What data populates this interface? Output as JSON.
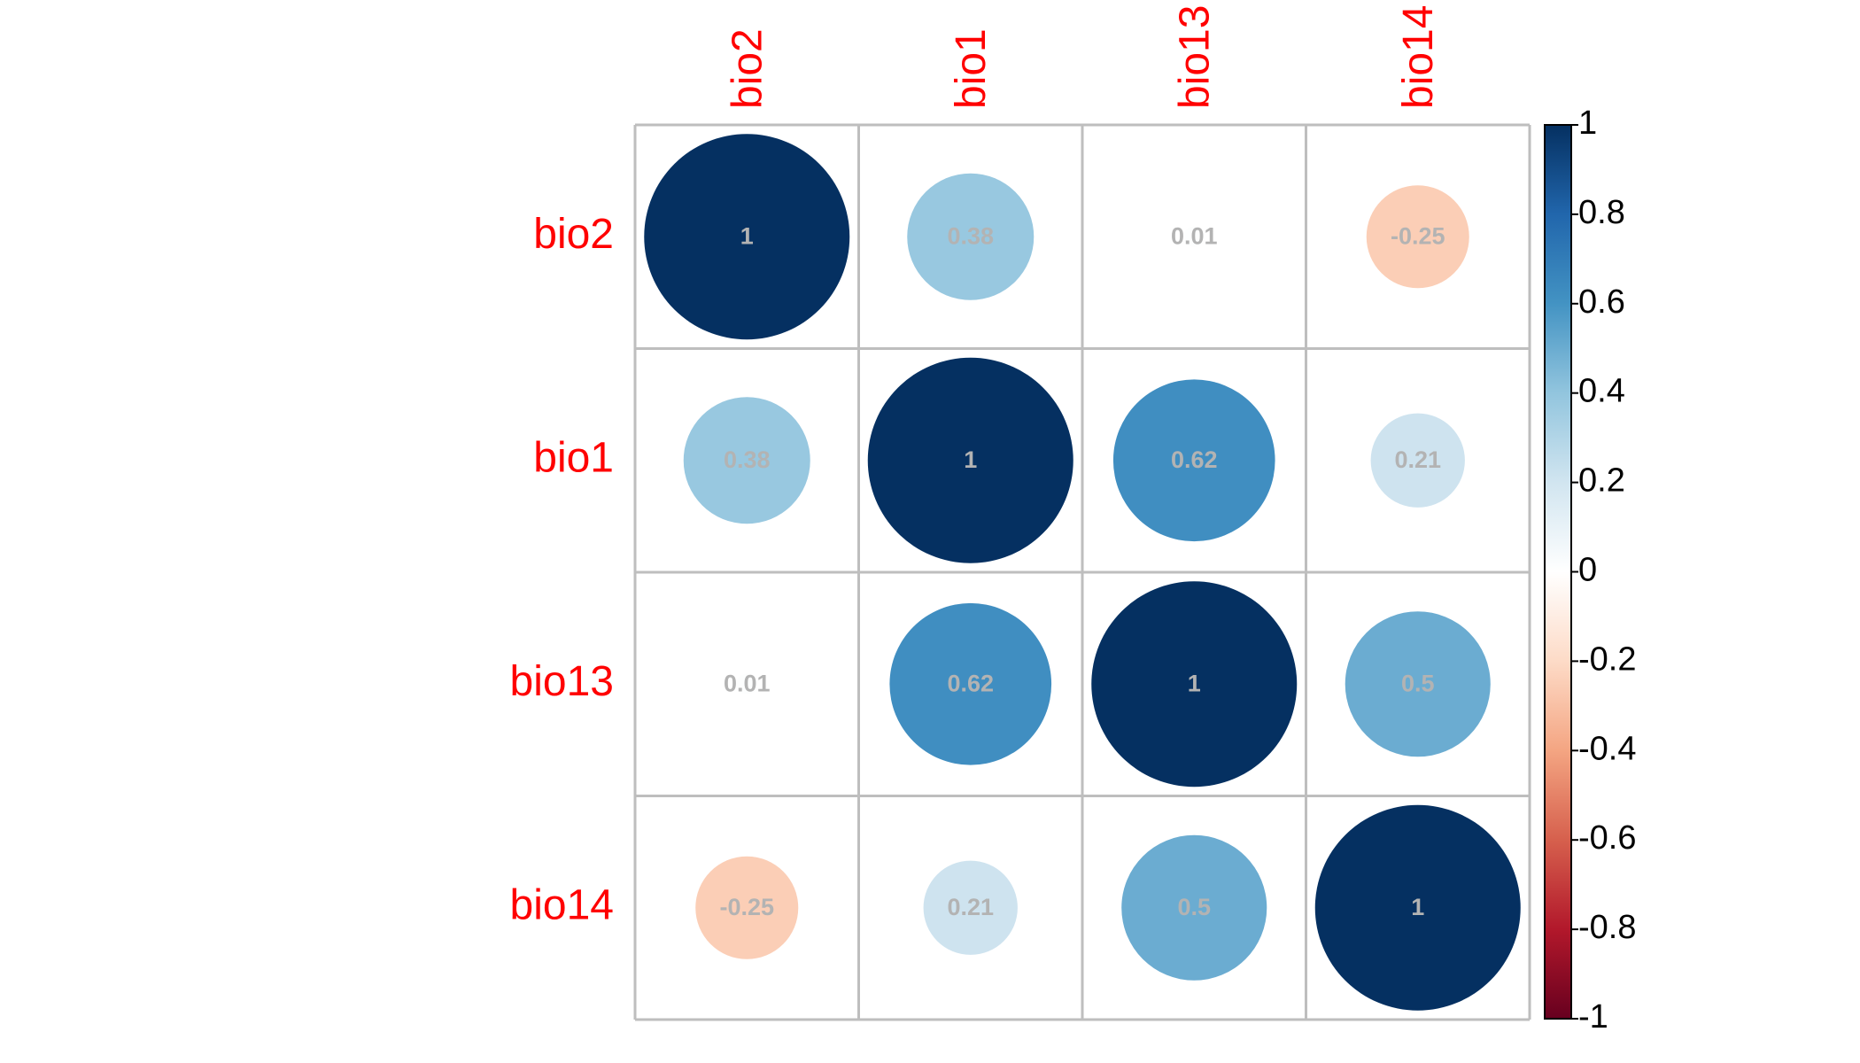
{
  "chart_data": {
    "type": "heatmap",
    "style": "correlation-circles",
    "variables": [
      "bio2",
      "bio1",
      "bio13",
      "bio14"
    ],
    "matrix": [
      [
        1,
        0.38,
        0.01,
        -0.25
      ],
      [
        0.38,
        1,
        0.62,
        0.21
      ],
      [
        0.01,
        0.62,
        1,
        0.5
      ],
      [
        -0.25,
        0.21,
        0.5,
        1
      ]
    ],
    "value_labels": [
      [
        "1",
        "0.38",
        "0.01",
        "-0.25"
      ],
      [
        "0.38",
        "1",
        "0.62",
        "0.21"
      ],
      [
        "0.01",
        "0.62",
        "1",
        "0.5"
      ],
      [
        "-0.25",
        "0.21",
        "0.5",
        "1"
      ]
    ],
    "color_scale": {
      "range": [
        -1,
        1
      ],
      "ticks": [
        1,
        0.8,
        0.6,
        0.4,
        0.2,
        0,
        -0.2,
        -0.4,
        -0.6,
        -0.8,
        -1
      ],
      "tick_labels": [
        "1",
        "0.8",
        "0.6",
        "0.4",
        "0.2",
        "0",
        "-0.2",
        "-0.4",
        "-0.6",
        "-0.8",
        "-1"
      ],
      "colors": [
        "#67001F",
        "#B2182B",
        "#D6604D",
        "#F4A582",
        "#FDDBC7",
        "#FFFFFF",
        "#D1E5F0",
        "#92C5DE",
        "#4393C3",
        "#2166AC",
        "#053061"
      ]
    },
    "label_color": "#FF0000",
    "value_text_color": "#B3B3B3",
    "grid_color": "#BEBEBE",
    "legend_position": "right"
  }
}
